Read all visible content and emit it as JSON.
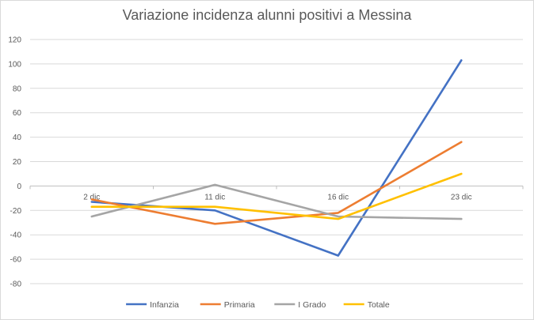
{
  "chart_data": {
    "type": "line",
    "title": "Variazione incidenza alunni positivi a Messina",
    "categories": [
      "2 dic",
      "11 dic",
      "16 dic",
      "23 dic"
    ],
    "series": [
      {
        "name": "Infanzia",
        "color": "#4472C4",
        "values": [
          -13,
          -20,
          -57,
          103
        ]
      },
      {
        "name": "Primaria",
        "color": "#ED7D31",
        "values": [
          -11,
          -31,
          -22,
          36
        ]
      },
      {
        "name": "I Grado",
        "color": "#A5A5A5",
        "values": [
          -25,
          1,
          -25,
          -27
        ]
      },
      {
        "name": "Totale",
        "color": "#FFC000",
        "values": [
          -17,
          -17,
          -27,
          10
        ]
      }
    ],
    "ylim": [
      -80,
      120
    ],
    "yticks": [
      120,
      100,
      80,
      60,
      40,
      20,
      0,
      -20,
      -40,
      -60,
      -80
    ],
    "grid": true,
    "legend": "bottom"
  }
}
